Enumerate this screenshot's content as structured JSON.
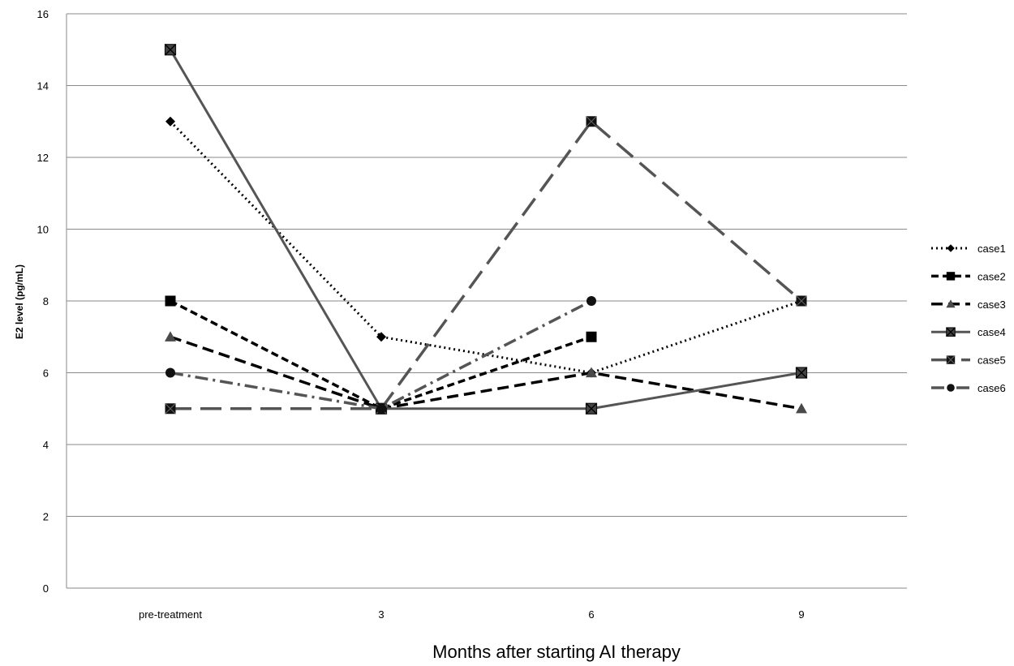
{
  "chart_data": {
    "type": "line",
    "title": "",
    "xlabel": "Months after starting AI therapy",
    "ylabel": "E2 level (pg/mL)",
    "categories": [
      "pre-treatment",
      "3",
      "6",
      "9"
    ],
    "ylim": [
      0,
      16
    ],
    "yticks": [
      0,
      2,
      4,
      6,
      8,
      10,
      12,
      14,
      16
    ],
    "grid": true,
    "legend_position": "right",
    "series": [
      {
        "name": "case1",
        "values": [
          13,
          7,
          6,
          8
        ],
        "color": "#000000",
        "dash": "dotted",
        "marker": "diamond"
      },
      {
        "name": "case2",
        "values": [
          8,
          5,
          7,
          null
        ],
        "color": "#000000",
        "dash": "short-dash",
        "marker": "square"
      },
      {
        "name": "case3",
        "values": [
          7,
          5,
          6,
          5
        ],
        "color": "#000000",
        "dash": "dash",
        "marker": "triangle"
      },
      {
        "name": "case4",
        "values": [
          15,
          5,
          5,
          6
        ],
        "color": "#555555",
        "dash": "solid",
        "marker": "square-x"
      },
      {
        "name": "case5",
        "values": [
          5,
          5,
          13,
          8
        ],
        "color": "#555555",
        "dash": "long-dash",
        "marker": "square-star"
      },
      {
        "name": "case6",
        "values": [
          6,
          5,
          8,
          null
        ],
        "color": "#555555",
        "dash": "dash-dot",
        "marker": "circle"
      }
    ]
  }
}
